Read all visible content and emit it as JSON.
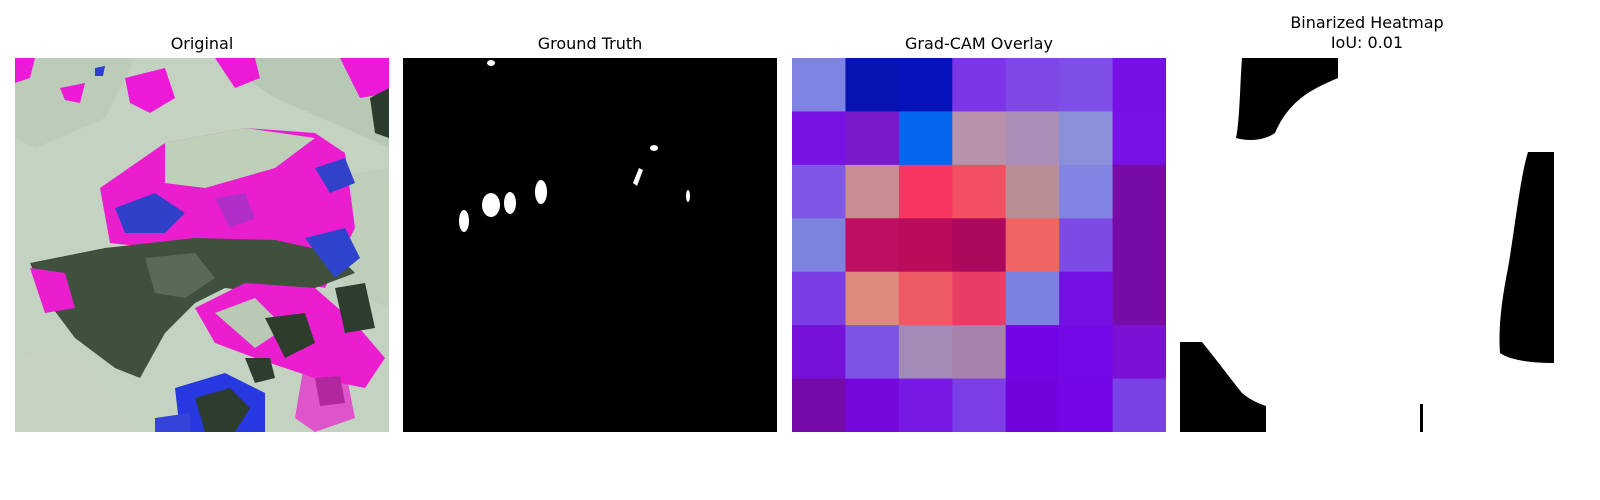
{
  "panels": {
    "original": {
      "title": "Original"
    },
    "ground_truth": {
      "title": "Ground Truth"
    },
    "gradcam": {
      "title": "Grad-CAM Overlay",
      "grid_colors": [
        [
          "#7f83e3",
          "#0514b0",
          "#0512bb",
          "#7d36e6",
          "#7e47e6",
          "#7d4fe6",
          "#7710e4"
        ],
        [
          "#7a12e3",
          "#7a19c9",
          "#0466ee",
          "#b792aa",
          "#a98fb7",
          "#8a90d8",
          "#7711e6"
        ],
        [
          "#7d57e6",
          "#c98d91",
          "#f93564",
          "#f24f63",
          "#b98d94",
          "#8184e0",
          "#760ba8"
        ],
        [
          "#7d84de",
          "#bd0f62",
          "#b90c5b",
          "#ad095c",
          "#f06563",
          "#7c4be6",
          "#760ba8"
        ],
        [
          "#7b3de6",
          "#de8a7c",
          "#ed5a63",
          "#e83e66",
          "#7c80df",
          "#7210e3",
          "#760ba8"
        ],
        [
          "#7811d8",
          "#7d55e6",
          "#a08cb5",
          "#a782ac",
          "#7304e5",
          "#7409e6",
          "#7c11d6"
        ],
        [
          "#760aa8",
          "#7507dc",
          "#7718e5",
          "#7c3ee6",
          "#7203dc",
          "#7506e8",
          "#7a42e6"
        ]
      ]
    },
    "binarized": {
      "title": "Binarized Heatmap",
      "iou_text": "IoU: 0.01"
    }
  }
}
